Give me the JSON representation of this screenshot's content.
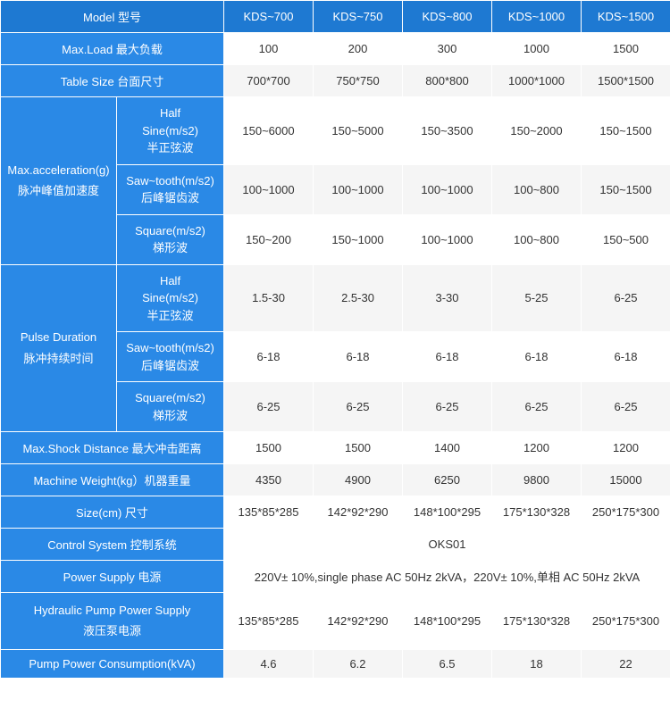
{
  "header": {
    "model": "Model  型号",
    "cols": [
      "KDS~700",
      "KDS~750",
      "KDS~800",
      "KDS~1000",
      "KDS~1500"
    ]
  },
  "rows": {
    "maxLoad": {
      "label": "Max.Load  最大负载",
      "vals": [
        "100",
        "200",
        "300",
        "1000",
        "1500"
      ]
    },
    "tableSize": {
      "label": "Table Size  台面尺寸",
      "vals": [
        "700*700",
        "750*750",
        "800*800",
        "1000*1000",
        "1500*1500"
      ]
    },
    "accel": {
      "label": "Max.acceleration(g)\n脉冲峰值加速度",
      "half": {
        "sub": "Half Sine(m/s2) 半正弦波",
        "vals": [
          "150~6000",
          "150~5000",
          "150~3500",
          "150~2000",
          "150~1500"
        ]
      },
      "saw": {
        "sub": "Saw~tooth(m/s2) 后峰锯齿波",
        "vals": [
          "100~1000",
          "100~1000",
          "100~1000",
          "100~800",
          "150~1500"
        ]
      },
      "square": {
        "sub": "Square(m/s2) 梯形波",
        "vals": [
          "150~200",
          "150~1000",
          "100~1000",
          "100~800",
          "150~500"
        ]
      }
    },
    "pulse": {
      "label": "Pulse Duration 脉冲持续时间",
      "half": {
        "sub": "Half Sine(m/s2) 半正弦波",
        "vals": [
          "1.5-30",
          "2.5-30",
          "3-30",
          "5-25",
          "6-25"
        ]
      },
      "saw": {
        "sub": "Saw~tooth(m/s2) 后峰锯齿波",
        "vals": [
          "6-18",
          "6-18",
          "6-18",
          "6-18",
          "6-18"
        ]
      },
      "square": {
        "sub": "Square(m/s2) 梯形波",
        "vals": [
          "6-25",
          "6-25",
          "6-25",
          "6-25",
          "6-25"
        ]
      }
    },
    "shock": {
      "label": "Max.Shock Distance 最大冲击距离",
      "vals": [
        "1500",
        "1500",
        "1400",
        "1200",
        "1200"
      ]
    },
    "weight": {
      "label": "Machine Weight(kg）机器重量",
      "vals": [
        "4350",
        "4900",
        "6250",
        "9800",
        "15000"
      ]
    },
    "size": {
      "label": "Size(cm)  尺寸",
      "vals": [
        "135*85*285",
        "142*92*290",
        "148*100*295",
        "175*130*328",
        "250*175*300"
      ]
    },
    "control": {
      "label": "Control System  控制系统",
      "val": "OKS01"
    },
    "power": {
      "label": "Power Supply  电源",
      "val": "220V± 10%,single phase AC 50Hz 2kVA，220V± 10%,单相 AC 50Hz 2kVA"
    },
    "hydraulic": {
      "label": "Hydraulic Pump Power Supply 液压泵电源",
      "vals": [
        "135*85*285",
        "142*92*290",
        "148*100*295",
        "175*130*328",
        "250*175*300"
      ]
    },
    "pump": {
      "label": "Pump Power Consumption(kVA)",
      "vals": [
        "4.6",
        "6.2",
        "6.5",
        "18",
        "22"
      ]
    }
  }
}
